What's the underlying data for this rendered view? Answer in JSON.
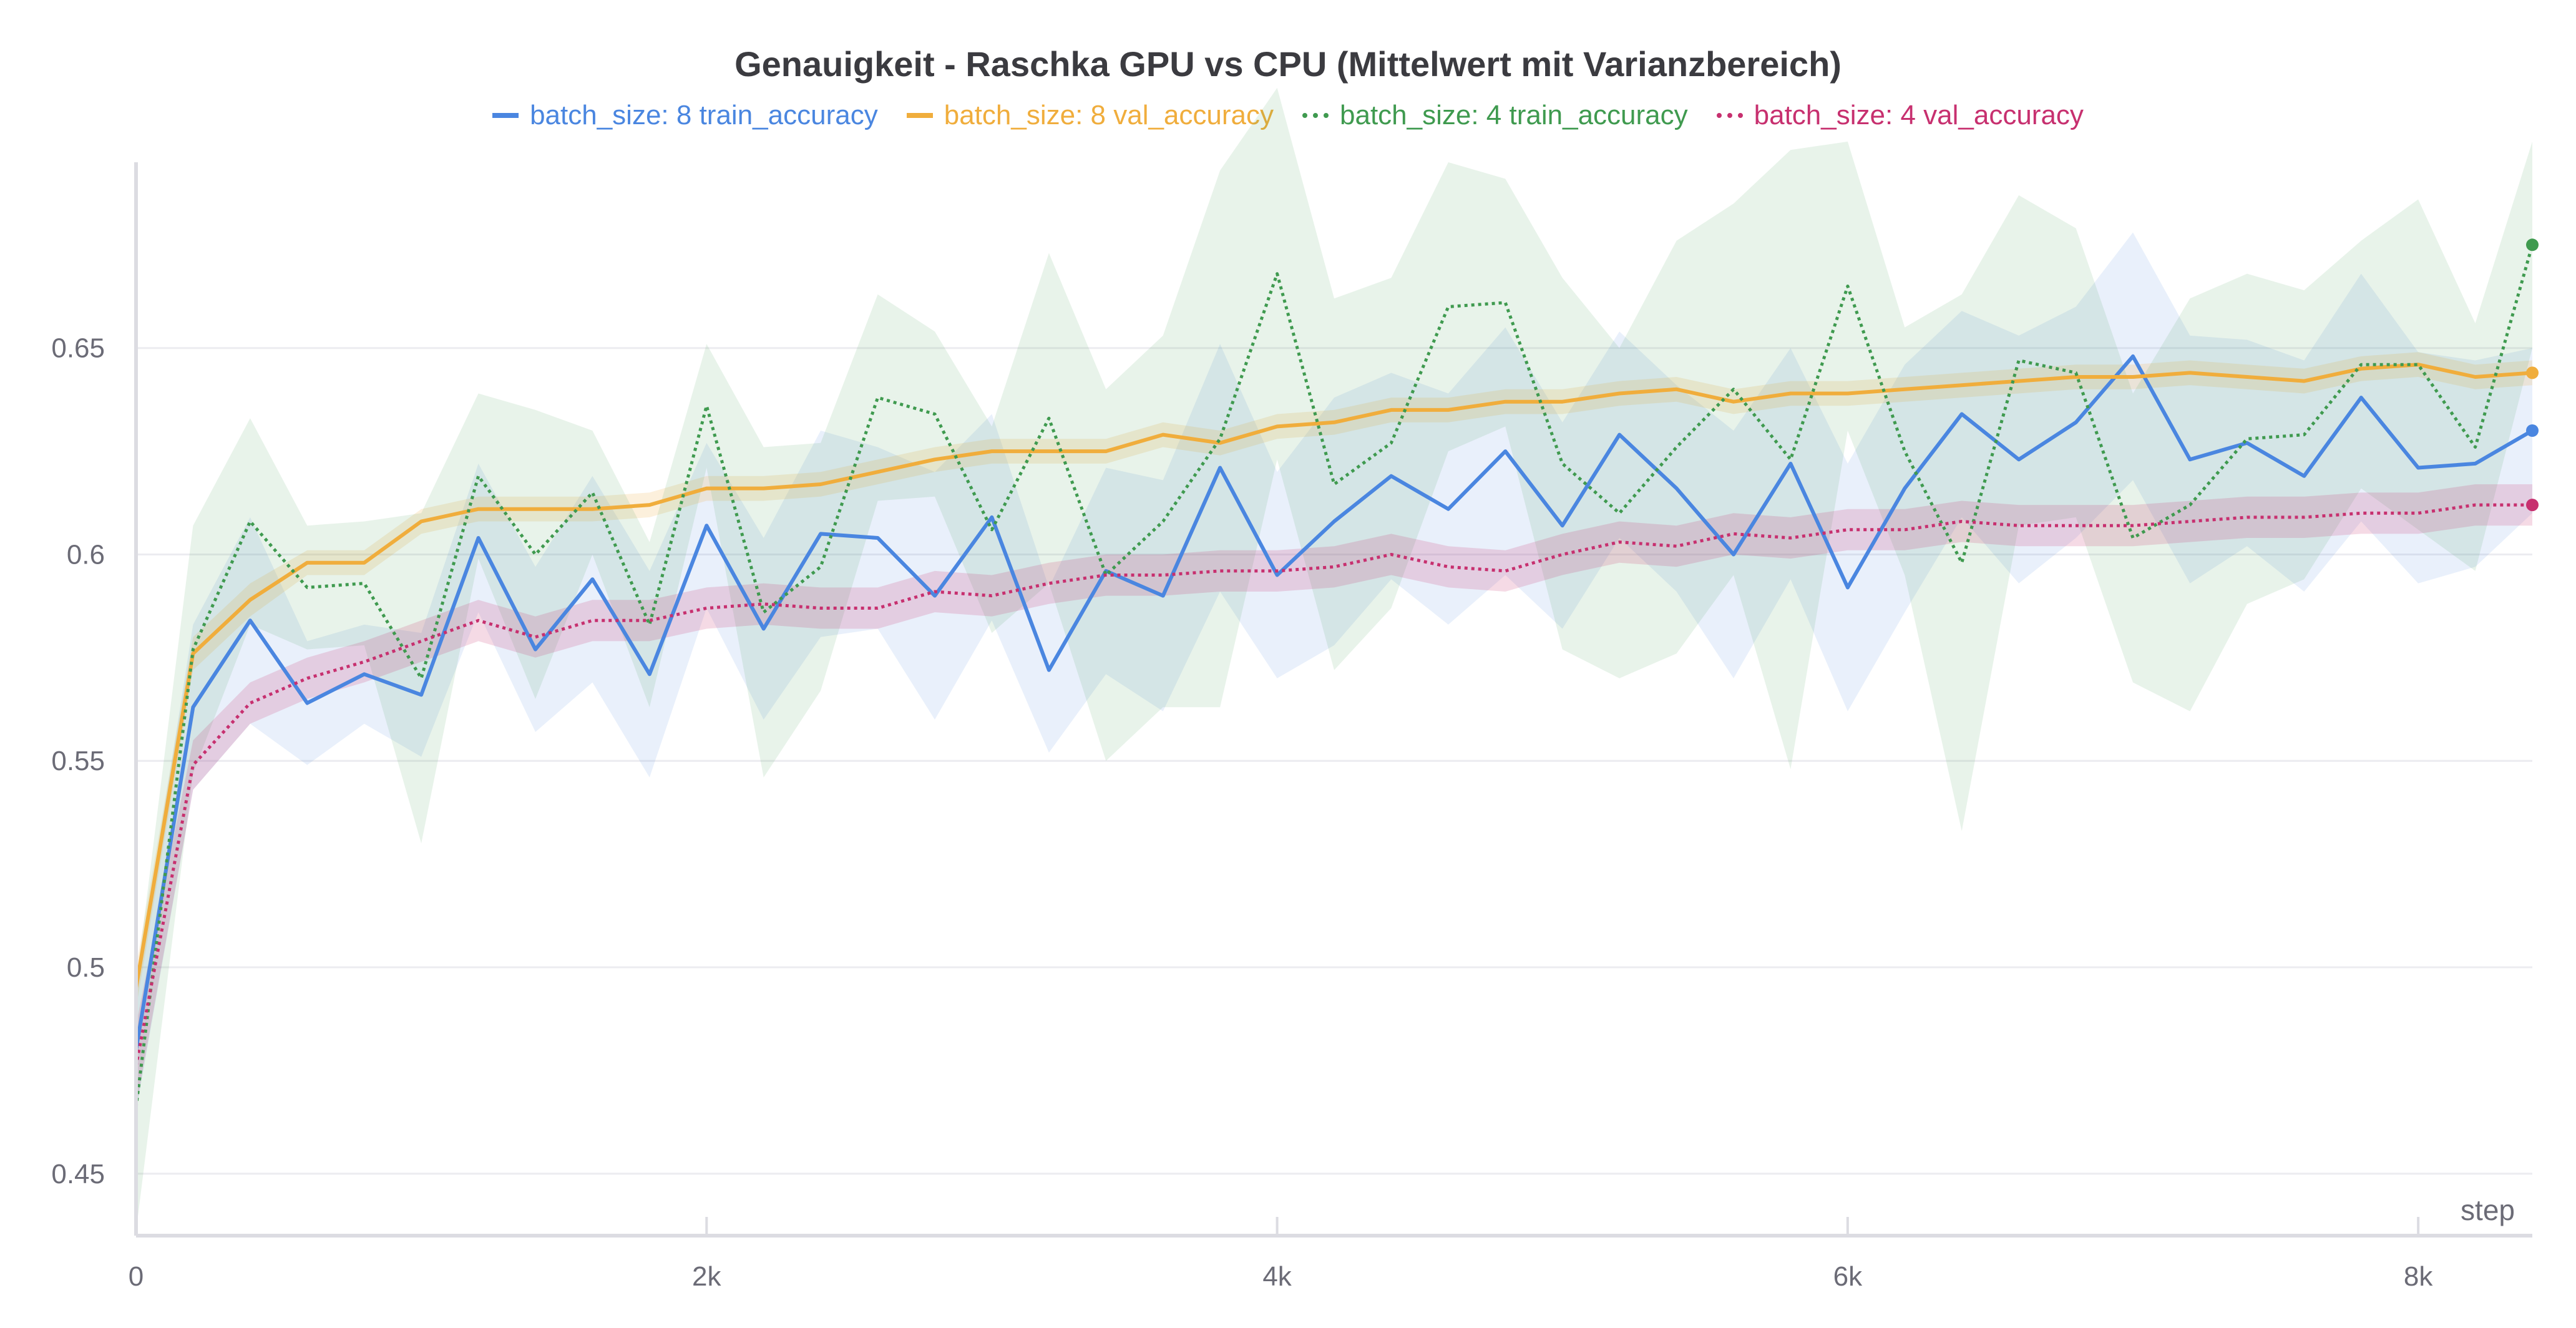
{
  "chart_data": {
    "type": "line",
    "title": "Genauigkeit - Raschka GPU vs CPU (Mittelwert mit Varianzbereich)",
    "xlabel": "step",
    "ylabel": "",
    "xlim": [
      0,
      8400
    ],
    "ylim": [
      0.435,
      0.695
    ],
    "grid": true,
    "legend_position": "top-center",
    "x_ticks": [
      {
        "value": 0,
        "label": "0"
      },
      {
        "value": 2000,
        "label": "2k"
      },
      {
        "value": 4000,
        "label": "4k"
      },
      {
        "value": 6000,
        "label": "6k"
      },
      {
        "value": 8000,
        "label": "8k"
      }
    ],
    "y_ticks": [
      {
        "value": 0.45,
        "label": "0.45"
      },
      {
        "value": 0.5,
        "label": "0.5"
      },
      {
        "value": 0.55,
        "label": "0.55"
      },
      {
        "value": 0.6,
        "label": "0.6"
      },
      {
        "value": 0.65,
        "label": "0.65"
      }
    ],
    "x": [
      0,
      200,
      400,
      600,
      800,
      1000,
      1200,
      1400,
      1600,
      1800,
      2000,
      2200,
      2400,
      2600,
      2800,
      3000,
      3200,
      3400,
      3600,
      3800,
      4000,
      4200,
      4400,
      4600,
      4800,
      5000,
      5200,
      5400,
      5600,
      5800,
      6000,
      6200,
      6400,
      6600,
      6800,
      7000,
      7200,
      7400,
      7600,
      7800,
      8000,
      8200,
      8400
    ],
    "series": [
      {
        "name": "batch_size: 8 train_accuracy",
        "color": "#4a86e0",
        "dash": "solid",
        "values": [
          0.48,
          0.563,
          0.584,
          0.564,
          0.571,
          0.566,
          0.604,
          0.577,
          0.594,
          0.571,
          0.607,
          0.582,
          0.605,
          0.604,
          0.59,
          0.609,
          0.572,
          0.596,
          0.59,
          0.621,
          0.595,
          0.608,
          0.619,
          0.611,
          0.625,
          0.607,
          0.629,
          0.616,
          0.6,
          0.622,
          0.592,
          0.616,
          0.634,
          0.623,
          0.632,
          0.648,
          0.623,
          0.627,
          0.619,
          0.638,
          0.621,
          0.622,
          0.63
        ],
        "band": [
          0.015,
          0.02,
          0.025,
          0.015,
          0.012,
          0.015,
          0.018,
          0.02,
          0.025,
          0.025,
          0.02,
          0.022,
          0.025,
          0.022,
          0.03,
          0.025,
          0.02,
          0.025,
          0.028,
          0.03,
          0.025,
          0.03,
          0.025,
          0.028,
          0.03,
          0.025,
          0.025,
          0.025,
          0.03,
          0.028,
          0.03,
          0.03,
          0.025,
          0.03,
          0.028,
          0.03,
          0.03,
          0.025,
          0.028,
          0.03,
          0.028,
          0.025,
          0.02
        ]
      },
      {
        "name": "batch_size: 8 val_accuracy",
        "color": "#f0ad3c",
        "dash": "solid",
        "values": [
          0.495,
          0.576,
          0.589,
          0.598,
          0.598,
          0.608,
          0.611,
          0.611,
          0.611,
          0.612,
          0.616,
          0.616,
          0.617,
          0.62,
          0.623,
          0.625,
          0.625,
          0.625,
          0.629,
          0.627,
          0.631,
          0.632,
          0.635,
          0.635,
          0.637,
          0.637,
          0.639,
          0.64,
          0.637,
          0.639,
          0.639,
          0.64,
          0.641,
          0.642,
          0.643,
          0.643,
          0.644,
          0.643,
          0.642,
          0.645,
          0.646,
          0.643,
          0.644
        ],
        "band": [
          0.005,
          0.004,
          0.004,
          0.003,
          0.003,
          0.003,
          0.003,
          0.003,
          0.003,
          0.003,
          0.003,
          0.003,
          0.003,
          0.003,
          0.003,
          0.003,
          0.003,
          0.003,
          0.003,
          0.003,
          0.003,
          0.003,
          0.003,
          0.003,
          0.003,
          0.003,
          0.003,
          0.003,
          0.003,
          0.003,
          0.003,
          0.003,
          0.003,
          0.003,
          0.003,
          0.003,
          0.003,
          0.003,
          0.003,
          0.003,
          0.003,
          0.003,
          0.003
        ]
      },
      {
        "name": "batch_size: 4 train_accuracy",
        "color": "#3f9a4f",
        "dash": "dotted",
        "values": [
          0.466,
          0.577,
          0.608,
          0.592,
          0.593,
          0.57,
          0.619,
          0.6,
          0.615,
          0.583,
          0.636,
          0.586,
          0.597,
          0.638,
          0.634,
          0.606,
          0.633,
          0.595,
          0.608,
          0.628,
          0.668,
          0.617,
          0.627,
          0.66,
          0.661,
          0.622,
          0.61,
          0.626,
          0.64,
          0.623,
          0.665,
          0.625,
          0.598,
          0.647,
          0.644,
          0.604,
          0.612,
          0.628,
          0.629,
          0.646,
          0.646,
          0.626,
          0.675
        ],
        "band": [
          0.03,
          0.03,
          0.025,
          0.015,
          0.015,
          0.04,
          0.02,
          0.035,
          0.015,
          0.02,
          0.015,
          0.04,
          0.03,
          0.025,
          0.02,
          0.025,
          0.04,
          0.045,
          0.045,
          0.065,
          0.045,
          0.045,
          0.04,
          0.035,
          0.03,
          0.045,
          0.04,
          0.05,
          0.045,
          0.075,
          0.035,
          0.03,
          0.065,
          0.04,
          0.035,
          0.035,
          0.05,
          0.04,
          0.035,
          0.03,
          0.04,
          0.03,
          0.025
        ]
      },
      {
        "name": "batch_size: 4 val_accuracy",
        "color": "#c7306f",
        "dash": "dotted",
        "values": [
          0.476,
          0.549,
          0.564,
          0.57,
          0.574,
          0.579,
          0.584,
          0.58,
          0.584,
          0.584,
          0.587,
          0.588,
          0.587,
          0.587,
          0.591,
          0.59,
          0.593,
          0.595,
          0.595,
          0.596,
          0.596,
          0.597,
          0.6,
          0.597,
          0.596,
          0.6,
          0.603,
          0.602,
          0.605,
          0.604,
          0.606,
          0.606,
          0.608,
          0.607,
          0.607,
          0.607,
          0.608,
          0.609,
          0.609,
          0.61,
          0.61,
          0.612,
          0.612
        ],
        "band": [
          0.01,
          0.006,
          0.005,
          0.005,
          0.005,
          0.005,
          0.005,
          0.005,
          0.005,
          0.005,
          0.005,
          0.005,
          0.005,
          0.005,
          0.005,
          0.005,
          0.005,
          0.005,
          0.005,
          0.005,
          0.005,
          0.005,
          0.005,
          0.005,
          0.005,
          0.005,
          0.005,
          0.005,
          0.005,
          0.005,
          0.005,
          0.005,
          0.005,
          0.005,
          0.005,
          0.005,
          0.005,
          0.005,
          0.005,
          0.005,
          0.005,
          0.005,
          0.005
        ]
      }
    ]
  }
}
